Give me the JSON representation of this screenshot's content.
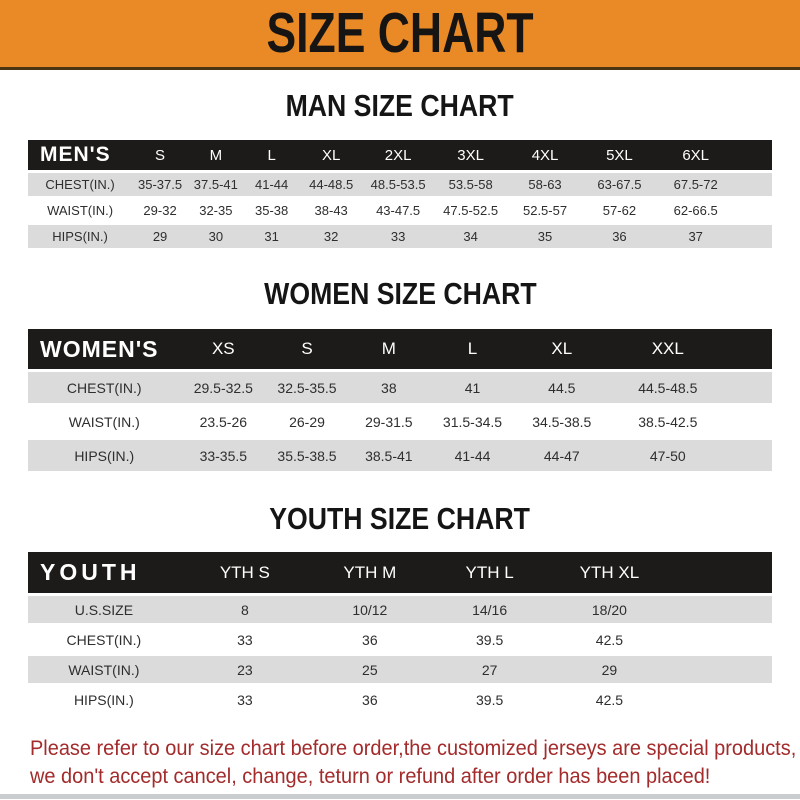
{
  "banner": {
    "title": "SIZE CHART",
    "bg_color": "#E98A27",
    "text_color": "#171513"
  },
  "sections": [
    {
      "heading": "MAN SIZE CHART",
      "header_label": "MEN'S",
      "columns": [
        "S",
        "M",
        "L",
        "XL",
        "2XL",
        "3XL",
        "4XL",
        "5XL",
        "6XL"
      ],
      "rows": [
        {
          "label": "CHEST(IN.)",
          "values": [
            "35-37.5",
            "37.5-41",
            "41-44",
            "44-48.5",
            "48.5-53.5",
            "53.5-58",
            "58-63",
            "63-67.5",
            "67.5-72"
          ]
        },
        {
          "label": "WAIST(IN.)",
          "values": [
            "29-32",
            "32-35",
            "35-38",
            "38-43",
            "43-47.5",
            "47.5-52.5",
            "52.5-57",
            "57-62",
            "62-66.5"
          ]
        },
        {
          "label": "HIPS(IN.)",
          "values": [
            "29",
            "30",
            "31",
            "32",
            "33",
            "34",
            "35",
            "36",
            "37"
          ]
        }
      ]
    },
    {
      "heading": "WOMEN SIZE CHART",
      "header_label": "WOMEN'S",
      "columns": [
        "XS",
        "S",
        "M",
        "L",
        "XL",
        "XXL"
      ],
      "rows": [
        {
          "label": "CHEST(IN.)",
          "values": [
            "29.5-32.5",
            "32.5-35.5",
            "38",
            "41",
            "44.5",
            "44.5-48.5"
          ]
        },
        {
          "label": "WAIST(IN.)",
          "values": [
            "23.5-26",
            "26-29",
            "29-31.5",
            "31.5-34.5",
            "34.5-38.5",
            "38.5-42.5"
          ]
        },
        {
          "label": "HIPS(IN.)",
          "values": [
            "33-35.5",
            "35.5-38.5",
            "38.5-41",
            "41-44",
            "44-47",
            "47-50"
          ]
        }
      ]
    },
    {
      "heading": "YOUTH SIZE CHART",
      "header_label": "YOUTH",
      "columns": [
        "YTH S",
        "YTH M",
        "YTH L",
        "YTH XL"
      ],
      "rows": [
        {
          "label": "U.S.SIZE",
          "values": [
            "8",
            "10/12",
            "14/16",
            "18/20"
          ]
        },
        {
          "label": "CHEST(IN.)",
          "values": [
            "33",
            "36",
            "39.5",
            "42.5"
          ]
        },
        {
          "label": "WAIST(IN.)",
          "values": [
            "23",
            "25",
            "27",
            "29"
          ]
        },
        {
          "label": "HIPS(IN.)",
          "values": [
            "33",
            "36",
            "39.5",
            "42.5"
          ]
        }
      ]
    }
  ],
  "table_colors": {
    "header_bar_bg": "#1c1b19",
    "header_bar_text": "#ffffff",
    "row_alt_bg": "#dbdbdb",
    "cell_text": "#2e2e2e"
  },
  "disclaimer": {
    "line1": "Please refer to our size chart before order,the customized jerseys are special products,",
    "line2": "we don't accept cancel, change, teturn or refund after order has been placed!",
    "color": "#a32b2b"
  }
}
